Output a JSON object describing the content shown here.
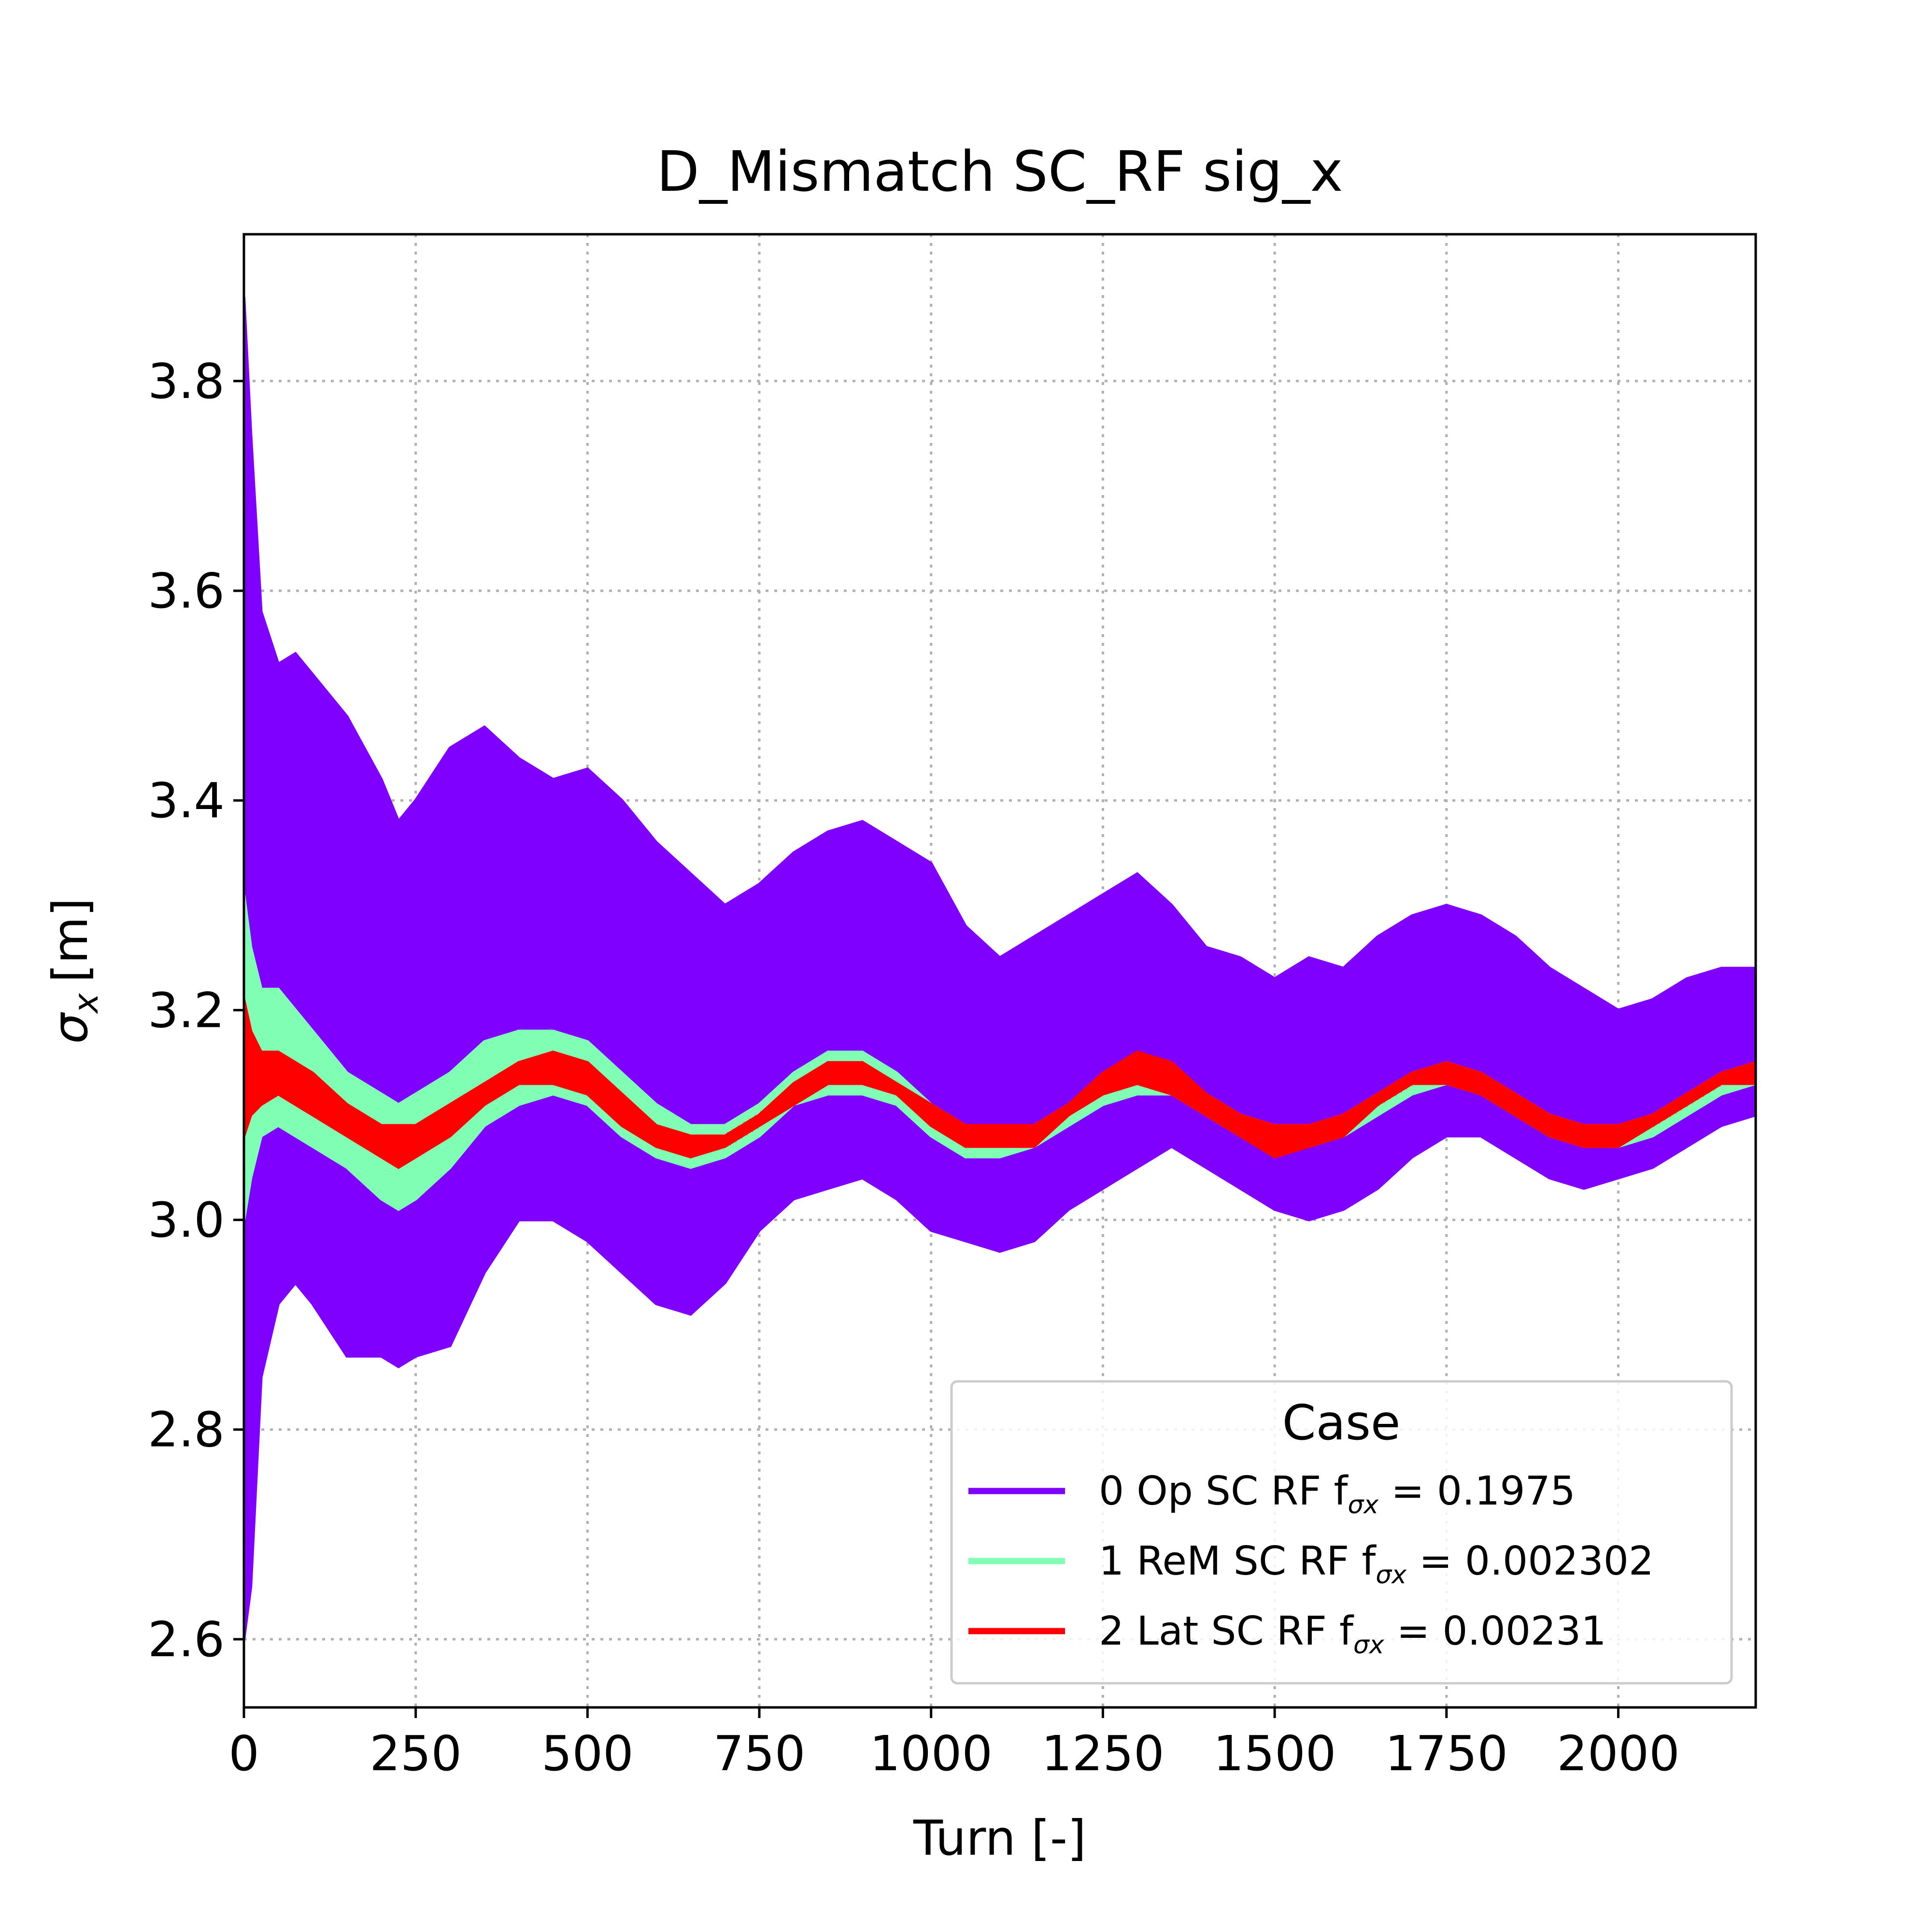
{
  "chart_data": {
    "type": "line",
    "title": "D_Mismatch SC_RF sig_x",
    "xlabel": "Turn [-]",
    "ylabel_symbol": "σ",
    "ylabel_sub": "x",
    "ylabel_unit": "[m]",
    "xlim": [
      0,
      2200
    ],
    "ylim": [
      2.535,
      3.94
    ],
    "x_ticks": [
      0,
      250,
      500,
      750,
      1000,
      1250,
      1500,
      1750,
      2000
    ],
    "y_ticks": [
      2.6,
      2.8,
      3.0,
      3.2,
      3.4,
      3.6,
      3.8
    ],
    "y_tick_labels": [
      "2.6",
      "2.8",
      "3.0",
      "3.2",
      "3.4",
      "3.6",
      "3.8"
    ],
    "grid": true,
    "legend": {
      "title": "Case",
      "placement": "lower-right"
    },
    "series": [
      {
        "name": "0 Op SC RF",
        "legend_prefix": "0 Op SC RF f",
        "legend_sub": "σx",
        "legend_value": " = 0.1975",
        "color": "#8000ff",
        "x": [
          0,
          10,
          25,
          50,
          75,
          100,
          150,
          200,
          225,
          250,
          300,
          350,
          400,
          450,
          500,
          550,
          600,
          650,
          700,
          750,
          800,
          850,
          900,
          950,
          1000,
          1050,
          1100,
          1150,
          1200,
          1250,
          1300,
          1350,
          1400,
          1450,
          1500,
          1550,
          1600,
          1650,
          1700,
          1750,
          1800,
          1850,
          1900,
          1950,
          2000,
          2050,
          2100,
          2150,
          2200
        ],
        "upper": [
          3.88,
          3.75,
          3.58,
          3.53,
          3.54,
          3.52,
          3.48,
          3.42,
          3.38,
          3.4,
          3.45,
          3.47,
          3.44,
          3.42,
          3.43,
          3.4,
          3.36,
          3.33,
          3.3,
          3.32,
          3.35,
          3.37,
          3.38,
          3.36,
          3.34,
          3.28,
          3.25,
          3.27,
          3.29,
          3.31,
          3.33,
          3.3,
          3.26,
          3.25,
          3.23,
          3.25,
          3.24,
          3.27,
          3.29,
          3.3,
          3.29,
          3.27,
          3.24,
          3.22,
          3.2,
          3.21,
          3.23,
          3.24,
          3.24
        ],
        "lower": [
          2.6,
          2.65,
          2.85,
          2.92,
          2.94,
          2.92,
          2.87,
          2.87,
          2.86,
          2.87,
          2.88,
          2.95,
          3.0,
          3.0,
          2.98,
          2.95,
          2.92,
          2.91,
          2.94,
          2.99,
          3.02,
          3.03,
          3.04,
          3.02,
          2.99,
          2.98,
          2.97,
          2.98,
          3.01,
          3.03,
          3.05,
          3.07,
          3.05,
          3.03,
          3.01,
          3.0,
          3.01,
          3.03,
          3.06,
          3.08,
          3.08,
          3.06,
          3.04,
          3.03,
          3.04,
          3.05,
          3.07,
          3.09,
          3.1
        ]
      },
      {
        "name": "1 ReM SC RF",
        "legend_prefix": "1 ReM SC RF f",
        "legend_sub": "σx",
        "legend_value": " = 0.002302",
        "color": "#80ffb4",
        "x": [
          0,
          10,
          25,
          50,
          100,
          150,
          200,
          225,
          250,
          300,
          350,
          400,
          450,
          500,
          550,
          600,
          650,
          700,
          750,
          800,
          850,
          900,
          950,
          1000,
          1050,
          1100,
          1150,
          1200,
          1250,
          1300,
          1350,
          1400,
          1450,
          1500,
          1550,
          1600,
          1650,
          1700,
          1750,
          1800,
          1850,
          1900,
          1950,
          2000,
          2050,
          2100,
          2150,
          2200
        ],
        "upper": [
          3.31,
          3.26,
          3.22,
          3.22,
          3.18,
          3.14,
          3.12,
          3.11,
          3.12,
          3.14,
          3.17,
          3.18,
          3.18,
          3.17,
          3.14,
          3.11,
          3.09,
          3.09,
          3.11,
          3.14,
          3.16,
          3.16,
          3.14,
          3.11,
          3.09,
          3.08,
          3.09,
          3.11,
          3.13,
          3.14,
          3.14,
          3.12,
          3.1,
          3.09,
          3.09,
          3.1,
          3.12,
          3.14,
          3.15,
          3.14,
          3.12,
          3.1,
          3.09,
          3.09,
          3.1,
          3.12,
          3.14,
          3.15
        ],
        "lower": [
          3.0,
          3.04,
          3.08,
          3.09,
          3.07,
          3.05,
          3.02,
          3.01,
          3.02,
          3.05,
          3.09,
          3.11,
          3.12,
          3.11,
          3.08,
          3.06,
          3.05,
          3.06,
          3.08,
          3.11,
          3.12,
          3.12,
          3.11,
          3.08,
          3.06,
          3.06,
          3.07,
          3.09,
          3.11,
          3.12,
          3.12,
          3.1,
          3.08,
          3.07,
          3.07,
          3.08,
          3.1,
          3.12,
          3.13,
          3.12,
          3.1,
          3.08,
          3.07,
          3.07,
          3.08,
          3.1,
          3.12,
          3.13
        ]
      },
      {
        "name": "2 Lat SC RF",
        "legend_prefix": "2 Lat SC RF f",
        "legend_sub": "σx",
        "legend_value": " = 0.00231",
        "color": "#ff0000",
        "x": [
          0,
          10,
          25,
          50,
          100,
          150,
          200,
          225,
          250,
          300,
          350,
          400,
          450,
          500,
          550,
          600,
          650,
          700,
          750,
          800,
          850,
          900,
          950,
          1000,
          1050,
          1100,
          1150,
          1200,
          1250,
          1300,
          1350,
          1400,
          1450,
          1500,
          1550,
          1600,
          1650,
          1700,
          1750,
          1800,
          1850,
          1900,
          1950,
          2000,
          2050,
          2100,
          2150,
          2200
        ],
        "upper": [
          3.21,
          3.18,
          3.16,
          3.16,
          3.14,
          3.11,
          3.09,
          3.09,
          3.09,
          3.11,
          3.13,
          3.15,
          3.16,
          3.15,
          3.12,
          3.09,
          3.08,
          3.08,
          3.1,
          3.13,
          3.15,
          3.15,
          3.13,
          3.11,
          3.09,
          3.09,
          3.09,
          3.11,
          3.14,
          3.16,
          3.15,
          3.12,
          3.1,
          3.09,
          3.09,
          3.1,
          3.12,
          3.14,
          3.15,
          3.14,
          3.12,
          3.1,
          3.09,
          3.09,
          3.1,
          3.12,
          3.14,
          3.15
        ],
        "lower": [
          3.08,
          3.1,
          3.11,
          3.12,
          3.1,
          3.08,
          3.06,
          3.05,
          3.06,
          3.08,
          3.11,
          3.13,
          3.13,
          3.12,
          3.09,
          3.07,
          3.06,
          3.07,
          3.09,
          3.11,
          3.13,
          3.13,
          3.12,
          3.09,
          3.07,
          3.07,
          3.07,
          3.1,
          3.12,
          3.13,
          3.12,
          3.1,
          3.08,
          3.06,
          3.07,
          3.08,
          3.11,
          3.13,
          3.13,
          3.12,
          3.1,
          3.08,
          3.07,
          3.07,
          3.09,
          3.11,
          3.13,
          3.13
        ]
      }
    ]
  }
}
